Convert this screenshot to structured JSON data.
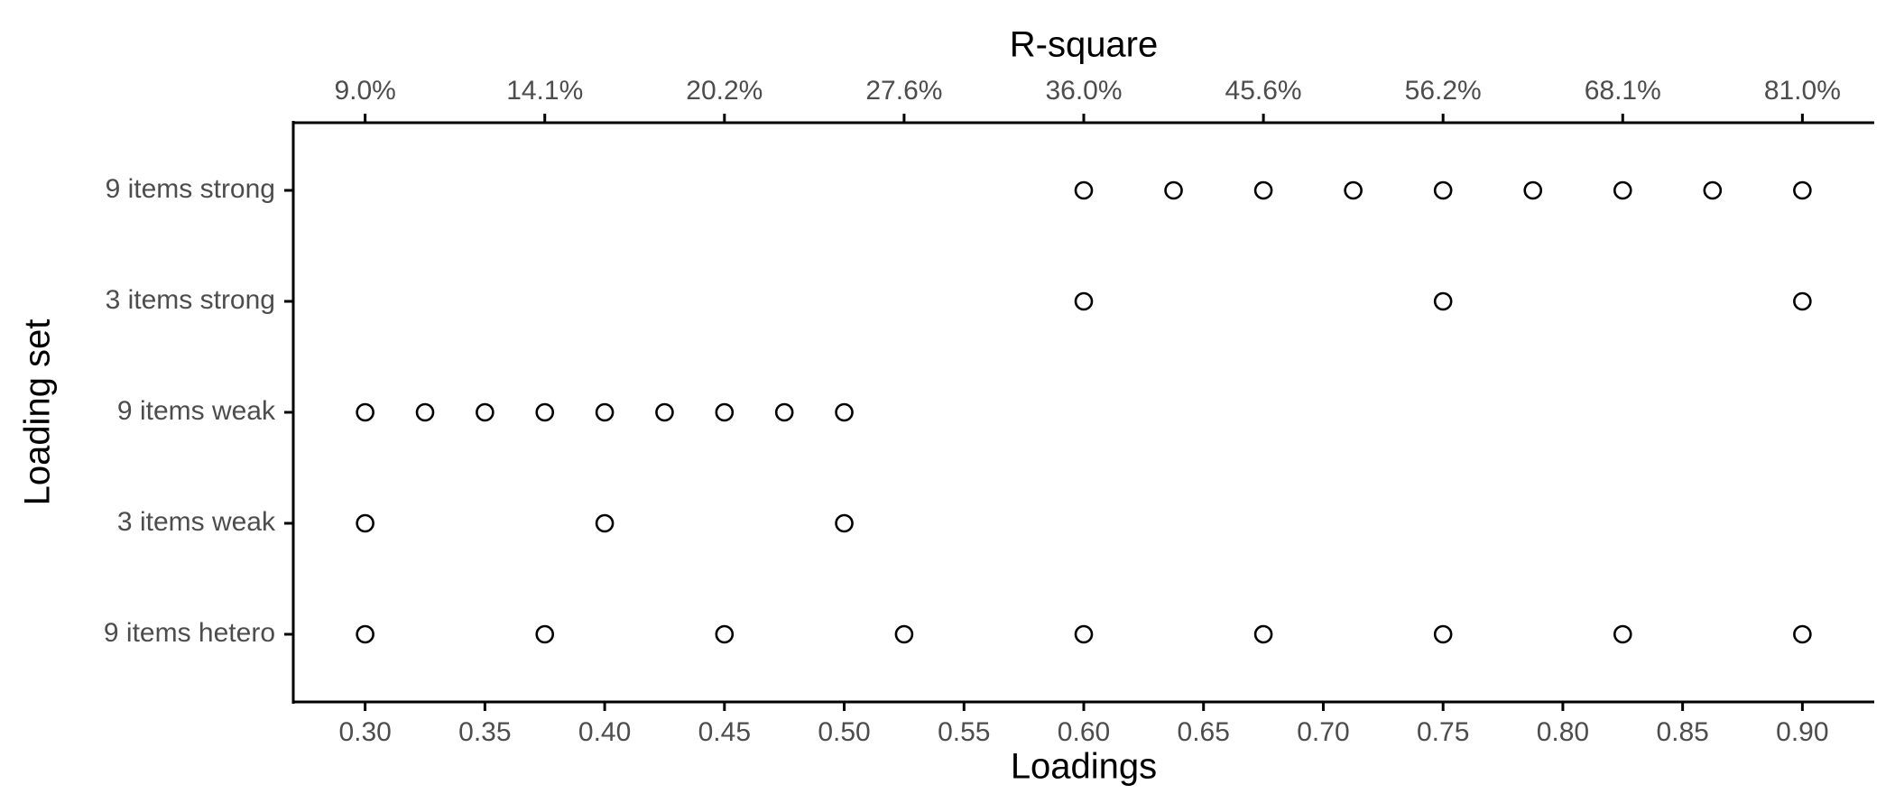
{
  "chart_data": {
    "type": "dotplot",
    "xlabel": "Loadings",
    "ylabel": "Loading set",
    "x2label": "R-square",
    "categories": [
      "9 items strong",
      "3 items strong",
      "9 items weak",
      "3 items weak",
      "9 items hetero"
    ],
    "values": [
      [
        0.6,
        0.6375,
        0.675,
        0.7125,
        0.75,
        0.7875,
        0.825,
        0.8625,
        0.9
      ],
      [
        0.6,
        0.75,
        0.9
      ],
      [
        0.3,
        0.325,
        0.35,
        0.375,
        0.4,
        0.425,
        0.45,
        0.475,
        0.5
      ],
      [
        0.3,
        0.4,
        0.5
      ],
      [
        0.3,
        0.375,
        0.45,
        0.525,
        0.6,
        0.675,
        0.75,
        0.825,
        0.9
      ]
    ],
    "color": "#000000",
    "xlim": [
      0.27,
      0.93
    ],
    "xticks": [
      {
        "value": 0.3,
        "label": "0.30"
      },
      {
        "value": 0.35,
        "label": "0.35"
      },
      {
        "value": 0.4,
        "label": "0.40"
      },
      {
        "value": 0.45,
        "label": "0.45"
      },
      {
        "value": 0.5,
        "label": "0.50"
      },
      {
        "value": 0.55,
        "label": "0.55"
      },
      {
        "value": 0.6,
        "label": "0.60"
      },
      {
        "value": 0.65,
        "label": "0.65"
      },
      {
        "value": 0.7,
        "label": "0.70"
      },
      {
        "value": 0.75,
        "label": "0.75"
      },
      {
        "value": 0.8,
        "label": "0.80"
      },
      {
        "value": 0.85,
        "label": "0.85"
      },
      {
        "value": 0.9,
        "label": "0.90"
      }
    ],
    "x2scale": "sqrt",
    "x2lim": [
      0.0729,
      0.8649
    ],
    "x2ticks": [
      {
        "value": 0.09,
        "label": "9.0%"
      },
      {
        "value": 0.140625,
        "label": "14.1%"
      },
      {
        "value": 0.2025,
        "label": "20.2%"
      },
      {
        "value": 0.275625,
        "label": "27.6%"
      },
      {
        "value": 0.36,
        "label": "36.0%"
      },
      {
        "value": 0.455625,
        "label": "45.6%"
      },
      {
        "value": 0.5625,
        "label": "56.2%"
      },
      {
        "value": 0.680625,
        "label": "68.1%"
      },
      {
        "value": 0.81,
        "label": "81.0%"
      }
    ],
    "grid": false
  }
}
